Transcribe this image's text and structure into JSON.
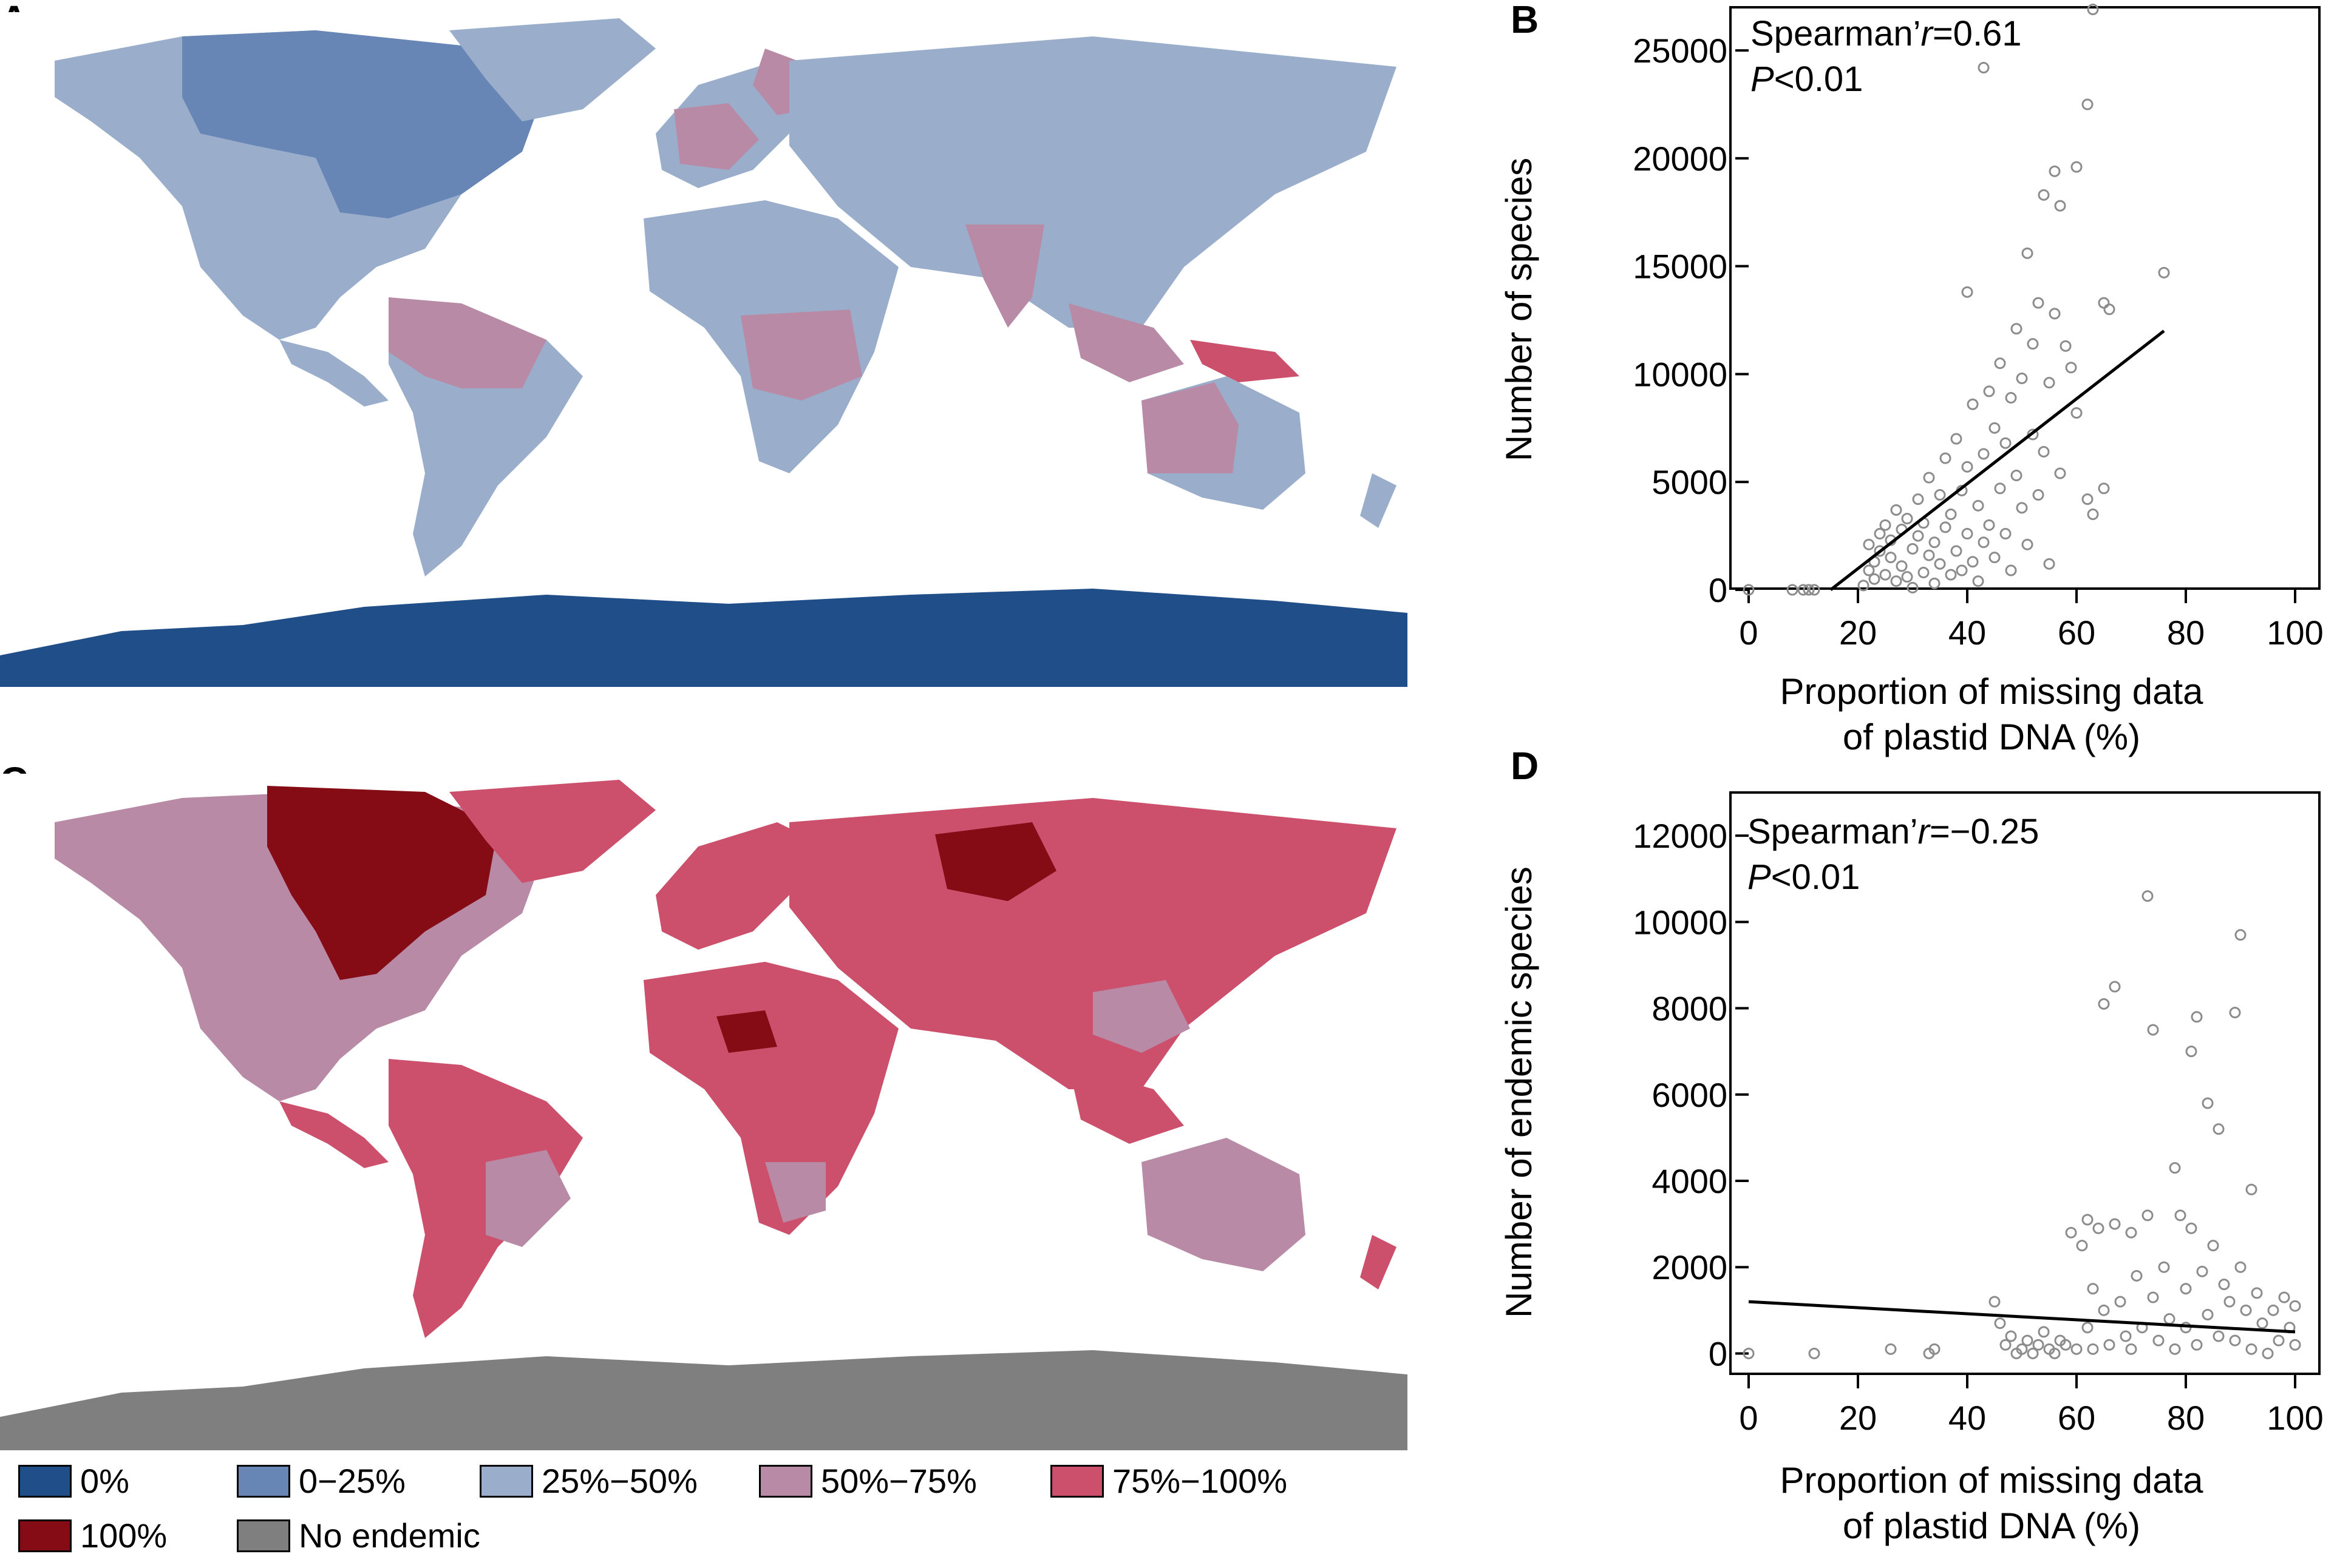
{
  "panels": {
    "a": "A",
    "b": "B",
    "c": "C",
    "d": "D"
  },
  "map_colors": {
    "pct_0": "#1f4e89",
    "pct_0_25": "#6786b5",
    "pct_25_50": "#9aaecb",
    "pct_50_75": "#b88aa6",
    "pct_75_100": "#cc4f6c",
    "pct_100": "#850c14",
    "no_endemic": "#7f7f7f"
  },
  "legend": [
    {
      "label": "0%",
      "color": "#1f4e89"
    },
    {
      "label": "0−25%",
      "color": "#6786b5"
    },
    {
      "label": "25%−50%",
      "color": "#9aaecb"
    },
    {
      "label": "50%−75%",
      "color": "#b88aa6"
    },
    {
      "label": "75%−100%",
      "color": "#cc4f6c"
    },
    {
      "label": "100%",
      "color": "#850c14"
    },
    {
      "label": "No endemic",
      "color": "#7f7f7f"
    }
  ],
  "chart_data": [
    {
      "panel": "B",
      "type": "scatter",
      "xlabel": [
        "Proportion of missing data",
        "of plastid DNA (%)"
      ],
      "ylabel": "Number of species",
      "xlim": [
        0,
        100
      ],
      "ylim": [
        0,
        27000
      ],
      "xticks": [
        "0",
        "20",
        "40",
        "60",
        "80",
        "100"
      ],
      "yticks": [
        "0",
        "5000",
        "10000",
        "15000",
        "20000",
        "25000"
      ],
      "annotation": {
        "prefix": "Spearman’",
        "var": "r",
        "value": "=0.61",
        "p_var": "P",
        "p_value": "<0.01"
      },
      "fit_line": [
        [
          15,
          0
        ],
        [
          76,
          12000
        ]
      ],
      "points": [
        [
          0,
          0
        ],
        [
          8,
          0
        ],
        [
          10,
          0
        ],
        [
          11,
          0
        ],
        [
          12,
          0
        ],
        [
          21,
          200
        ],
        [
          22,
          900
        ],
        [
          22,
          2100
        ],
        [
          23,
          1300
        ],
        [
          23,
          500
        ],
        [
          24,
          2600
        ],
        [
          24,
          1800
        ],
        [
          25,
          700
        ],
        [
          25,
          3000
        ],
        [
          26,
          1500
        ],
        [
          26,
          2300
        ],
        [
          27,
          400
        ],
        [
          27,
          3700
        ],
        [
          28,
          1100
        ],
        [
          28,
          2800
        ],
        [
          29,
          600
        ],
        [
          29,
          3300
        ],
        [
          30,
          1900
        ],
        [
          30,
          100
        ],
        [
          31,
          2500
        ],
        [
          31,
          4200
        ],
        [
          32,
          800
        ],
        [
          32,
          3100
        ],
        [
          33,
          1600
        ],
        [
          33,
          5200
        ],
        [
          34,
          2200
        ],
        [
          34,
          300
        ],
        [
          35,
          4400
        ],
        [
          35,
          1200
        ],
        [
          36,
          2900
        ],
        [
          36,
          6100
        ],
        [
          37,
          700
        ],
        [
          37,
          3500
        ],
        [
          38,
          1800
        ],
        [
          38,
          7000
        ],
        [
          39,
          4600
        ],
        [
          39,
          900
        ],
        [
          40,
          2600
        ],
        [
          40,
          5700
        ],
        [
          41,
          1300
        ],
        [
          41,
          8600
        ],
        [
          42,
          3900
        ],
        [
          42,
          400
        ],
        [
          43,
          6300
        ],
        [
          43,
          2200
        ],
        [
          44,
          9200
        ],
        [
          44,
          3000
        ],
        [
          45,
          7500
        ],
        [
          45,
          1500
        ],
        [
          46,
          4700
        ],
        [
          46,
          10500
        ],
        [
          47,
          2600
        ],
        [
          47,
          6800
        ],
        [
          48,
          8900
        ],
        [
          48,
          900
        ],
        [
          49,
          12100
        ],
        [
          49,
          5300
        ],
        [
          50,
          3800
        ],
        [
          50,
          9800
        ],
        [
          51,
          15600
        ],
        [
          51,
          2100
        ],
        [
          52,
          7200
        ],
        [
          52,
          11400
        ],
        [
          53,
          4400
        ],
        [
          53,
          13300
        ],
        [
          54,
          18300
        ],
        [
          54,
          6400
        ],
        [
          55,
          9600
        ],
        [
          55,
          1200
        ],
        [
          56,
          19400
        ],
        [
          56,
          12800
        ],
        [
          57,
          17800
        ],
        [
          57,
          5400
        ],
        [
          58,
          11300
        ],
        [
          59,
          10300
        ],
        [
          60,
          19600
        ],
        [
          60,
          8200
        ],
        [
          62,
          22500
        ],
        [
          62,
          4200
        ],
        [
          63,
          26900
        ],
        [
          63,
          3500
        ],
        [
          65,
          13300
        ],
        [
          65,
          4700
        ],
        [
          66,
          13000
        ],
        [
          76,
          14700
        ],
        [
          43,
          24200
        ],
        [
          40,
          13800
        ]
      ],
      "point_color": "#8c8c8c"
    },
    {
      "panel": "D",
      "type": "scatter",
      "xlabel": [
        "Proportion of missing data",
        "of plastid DNA (%)"
      ],
      "ylabel": "Number of endemic species",
      "xlim": [
        0,
        100
      ],
      "ylim": [
        -500,
        13000
      ],
      "xticks": [
        "0",
        "20",
        "40",
        "60",
        "80",
        "100"
      ],
      "yticks": [
        "0",
        "2000",
        "4000",
        "6000",
        "8000",
        "10000",
        "12000"
      ],
      "annotation": {
        "prefix": "Spearman’",
        "var": "r",
        "value": "=−0.25",
        "p_var": "P",
        "p_value": "<0.01"
      },
      "fit_line": [
        [
          0,
          1200
        ],
        [
          100,
          500
        ]
      ],
      "points": [
        [
          0,
          0
        ],
        [
          12,
          0
        ],
        [
          26,
          100
        ],
        [
          33,
          0
        ],
        [
          34,
          100
        ],
        [
          45,
          1200
        ],
        [
          46,
          700
        ],
        [
          47,
          200
        ],
        [
          48,
          400
        ],
        [
          49,
          0
        ],
        [
          50,
          100
        ],
        [
          51,
          300
        ],
        [
          52,
          0
        ],
        [
          53,
          200
        ],
        [
          54,
          500
        ],
        [
          55,
          100
        ],
        [
          56,
          0
        ],
        [
          57,
          300
        ],
        [
          58,
          200
        ],
        [
          59,
          2800
        ],
        [
          60,
          100
        ],
        [
          61,
          2500
        ],
        [
          62,
          3100
        ],
        [
          62,
          600
        ],
        [
          63,
          1500
        ],
        [
          63,
          100
        ],
        [
          64,
          2900
        ],
        [
          65,
          8100
        ],
        [
          65,
          1000
        ],
        [
          66,
          200
        ],
        [
          67,
          8500
        ],
        [
          67,
          3000
        ],
        [
          68,
          1200
        ],
        [
          69,
          400
        ],
        [
          70,
          2800
        ],
        [
          70,
          100
        ],
        [
          71,
          1800
        ],
        [
          72,
          600
        ],
        [
          73,
          10600
        ],
        [
          73,
          3200
        ],
        [
          74,
          7500
        ],
        [
          74,
          1300
        ],
        [
          75,
          300
        ],
        [
          76,
          2000
        ],
        [
          77,
          800
        ],
        [
          78,
          4300
        ],
        [
          78,
          100
        ],
        [
          79,
          3200
        ],
        [
          80,
          1500
        ],
        [
          80,
          600
        ],
        [
          81,
          7000
        ],
        [
          81,
          2900
        ],
        [
          82,
          7800
        ],
        [
          82,
          200
        ],
        [
          83,
          1900
        ],
        [
          84,
          5800
        ],
        [
          84,
          900
        ],
        [
          85,
          2500
        ],
        [
          86,
          5200
        ],
        [
          86,
          400
        ],
        [
          87,
          1600
        ],
        [
          88,
          1200
        ],
        [
          89,
          7900
        ],
        [
          89,
          300
        ],
        [
          90,
          9700
        ],
        [
          90,
          2000
        ],
        [
          91,
          1000
        ],
        [
          92,
          3800
        ],
        [
          92,
          100
        ],
        [
          93,
          1400
        ],
        [
          94,
          700
        ],
        [
          95,
          0
        ],
        [
          96,
          1000
        ],
        [
          97,
          300
        ],
        [
          98,
          1300
        ],
        [
          99,
          600
        ],
        [
          100,
          1100
        ],
        [
          100,
          200
        ]
      ],
      "point_color": "#8c8c8c"
    }
  ]
}
